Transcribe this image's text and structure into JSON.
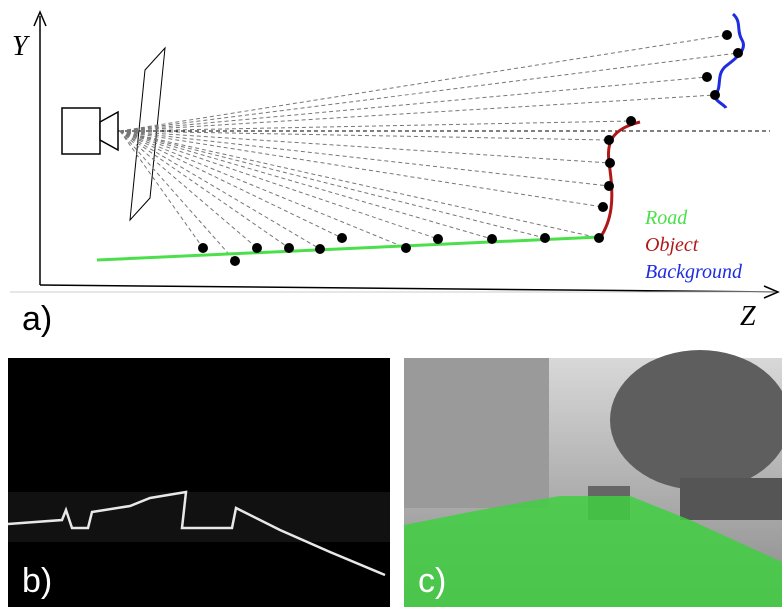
{
  "panel_a": {
    "y_axis_label": "Y",
    "z_axis_label": "Z",
    "label": "a)",
    "legend": [
      "Road",
      "Object",
      "Background"
    ]
  },
  "panel_b": {
    "label": "b)"
  },
  "panel_c": {
    "label": "c)"
  }
}
